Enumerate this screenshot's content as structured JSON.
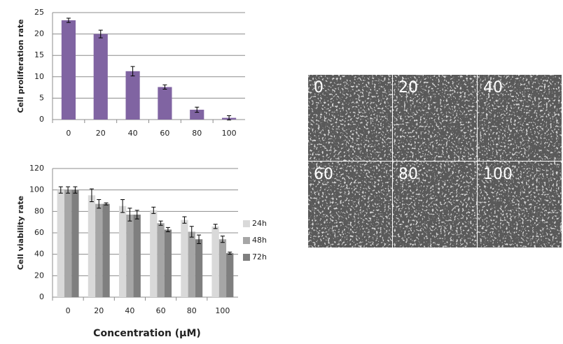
{
  "chart_data": [
    {
      "type": "bar",
      "ylabel": "Cell proliferation rate",
      "categories": [
        "0",
        "20",
        "40",
        "60",
        "80",
        "100"
      ],
      "values": [
        23.2,
        20,
        11.3,
        7.6,
        2.3,
        0.4
      ],
      "errors": [
        0.5,
        0.9,
        1.1,
        0.5,
        0.6,
        0.5
      ],
      "color": "#8064a2",
      "ylim": [
        0,
        25
      ],
      "yticks": [
        0,
        5,
        10,
        15,
        20,
        25
      ],
      "grid": true
    },
    {
      "type": "grouped-bar",
      "ylabel": "Cell viability rate",
      "xlabel": "Concentration (μM)",
      "categories": [
        "0",
        "20",
        "40",
        "60",
        "80",
        "100"
      ],
      "series": [
        {
          "name": "24h",
          "color": "#d9d9d9",
          "values": [
            100,
            95,
            85,
            81,
            72,
            66
          ],
          "errors": [
            3,
            6,
            6,
            3,
            3,
            2
          ]
        },
        {
          "name": "48h",
          "color": "#a6a6a6",
          "values": [
            100,
            87,
            77,
            69,
            61,
            54
          ],
          "errors": [
            3,
            4,
            6,
            2,
            5,
            3
          ]
        },
        {
          "name": "72h",
          "color": "#7f7f7f",
          "values": [
            100,
            87,
            77,
            63,
            54,
            41
          ],
          "errors": [
            3,
            1,
            4,
            2,
            4,
            1
          ]
        }
      ],
      "ylim": [
        0,
        120
      ],
      "yticks": [
        0,
        20,
        40,
        60,
        80,
        100,
        120
      ],
      "grid": true,
      "legend": "right"
    }
  ],
  "micrographs": {
    "labels": [
      "0",
      "20",
      "40",
      "60",
      "80",
      "100"
    ]
  }
}
